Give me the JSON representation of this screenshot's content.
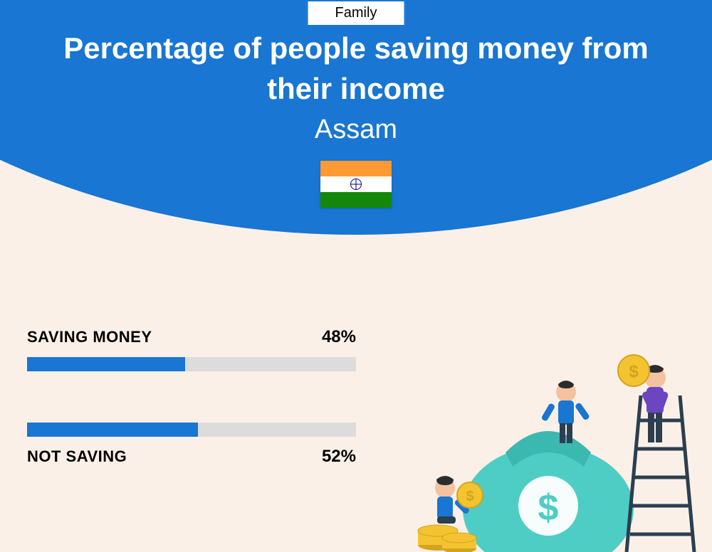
{
  "category_label": "Family",
  "title": "Percentage of people saving money from their income",
  "subtitle": "Assam",
  "colors": {
    "header_bg": "#1976d2",
    "page_bg": "#fbf0e7",
    "bar_fill": "#1976d2",
    "bar_track": "#dcdcdc",
    "text": "#000000",
    "title_text": "#ffffff"
  },
  "flag": {
    "saffron": "#ff9933",
    "white": "#ffffff",
    "green": "#138808",
    "chakra": "#000080"
  },
  "bars": [
    {
      "label": "SAVING MONEY",
      "value": 48,
      "display": "48%",
      "label_position": "above"
    },
    {
      "label": "NOT SAVING",
      "value": 52,
      "display": "52%",
      "label_position": "below"
    }
  ],
  "illustration": {
    "bag_color": "#4ecdc4",
    "bag_dark": "#3bb8b0",
    "coin_color": "#f4c430",
    "coin_dark": "#d4a420",
    "ladder_color": "#2c3e50",
    "person1_top": "#1976d2",
    "person1_bottom": "#2c3e50",
    "person2_top": "#6b46c1",
    "person2_bottom": "#2c3e50",
    "person3_top": "#1976d2",
    "person3_bottom": "#2c3e50",
    "skin": "#f4c2a1",
    "hair": "#2c2c2c"
  }
}
